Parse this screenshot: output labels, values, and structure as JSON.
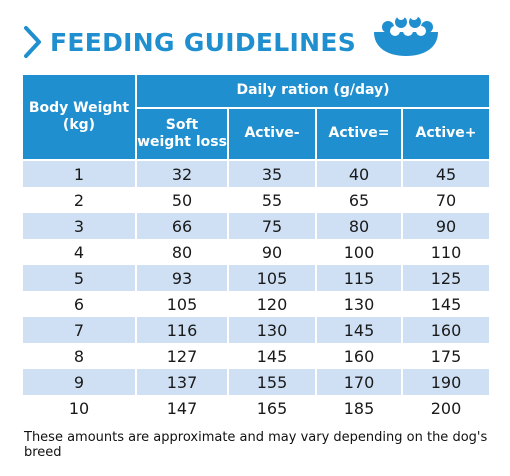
{
  "header": {
    "title": "FEEDING GUIDELINES",
    "chevron_icon": "chevron-right-icon",
    "bowl_icon": "food-bowl-icon",
    "accent_color": "#1f8fcf",
    "band_color": "#cfe0f4"
  },
  "table": {
    "weight_header_line1": "Body Weight",
    "weight_header_line2": "(kg)",
    "ration_header": "Daily ration (g/day)",
    "sub_headers": [
      "Soft weight loss",
      "Active-",
      "Active=",
      "Active+"
    ],
    "rows": [
      [
        "1",
        "32",
        "35",
        "40",
        "45"
      ],
      [
        "2",
        "50",
        "55",
        "65",
        "70"
      ],
      [
        "3",
        "66",
        "75",
        "80",
        "90"
      ],
      [
        "4",
        "80",
        "90",
        "100",
        "110"
      ],
      [
        "5",
        "93",
        "105",
        "115",
        "125"
      ],
      [
        "6",
        "105",
        "120",
        "130",
        "145"
      ],
      [
        "7",
        "116",
        "130",
        "145",
        "160"
      ],
      [
        "8",
        "127",
        "145",
        "160",
        "175"
      ],
      [
        "9",
        "137",
        "155",
        "170",
        "190"
      ],
      [
        "10",
        "147",
        "165",
        "185",
        "200"
      ]
    ]
  },
  "note": "These amounts are approximate and may vary depending on the dog's breed"
}
